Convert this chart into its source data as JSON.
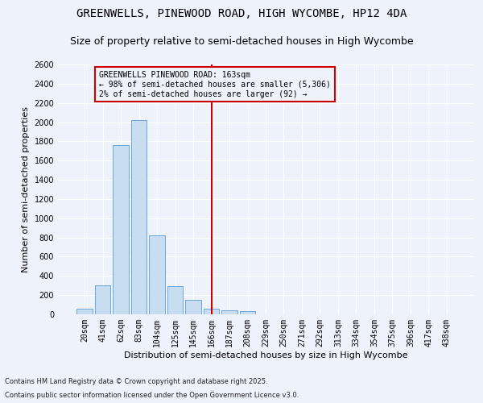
{
  "title": "GREENWELLS, PINEWOOD ROAD, HIGH WYCOMBE, HP12 4DA",
  "subtitle": "Size of property relative to semi-detached houses in High Wycombe",
  "xlabel": "Distribution of semi-detached houses by size in High Wycombe",
  "ylabel": "Number of semi-detached properties",
  "bar_categories": [
    "20sqm",
    "41sqm",
    "62sqm",
    "83sqm",
    "104sqm",
    "125sqm",
    "145sqm",
    "166sqm",
    "187sqm",
    "208sqm",
    "229sqm",
    "250sqm",
    "271sqm",
    "292sqm",
    "313sqm",
    "334sqm",
    "354sqm",
    "375sqm",
    "396sqm",
    "417sqm",
    "438sqm"
  ],
  "bar_values": [
    60,
    300,
    1760,
    2020,
    820,
    290,
    155,
    55,
    40,
    30,
    0,
    0,
    0,
    0,
    0,
    0,
    0,
    0,
    0,
    0,
    0
  ],
  "bar_color": "#c9ddf0",
  "bar_edge_color": "#5b9bd5",
  "vline_index": 7,
  "vline_color": "#cc0000",
  "ylim": [
    0,
    2600
  ],
  "yticks": [
    0,
    200,
    400,
    600,
    800,
    1000,
    1200,
    1400,
    1600,
    1800,
    2000,
    2200,
    2400,
    2600
  ],
  "annotation_title": "GREENWELLS PINEWOOD ROAD: 163sqm",
  "annotation_line1": "← 98% of semi-detached houses are smaller (5,306)",
  "annotation_line2": "2% of semi-detached houses are larger (92) →",
  "annotation_box_color": "#cc0000",
  "footnote1": "Contains HM Land Registry data © Crown copyright and database right 2025.",
  "footnote2": "Contains public sector information licensed under the Open Government Licence v3.0.",
  "bg_color": "#eef2fa",
  "grid_color": "#ffffff",
  "title_fontsize": 10,
  "subtitle_fontsize": 9,
  "ylabel_fontsize": 8,
  "xlabel_fontsize": 8,
  "tick_fontsize": 7,
  "annot_fontsize": 7,
  "footnote_fontsize": 6
}
